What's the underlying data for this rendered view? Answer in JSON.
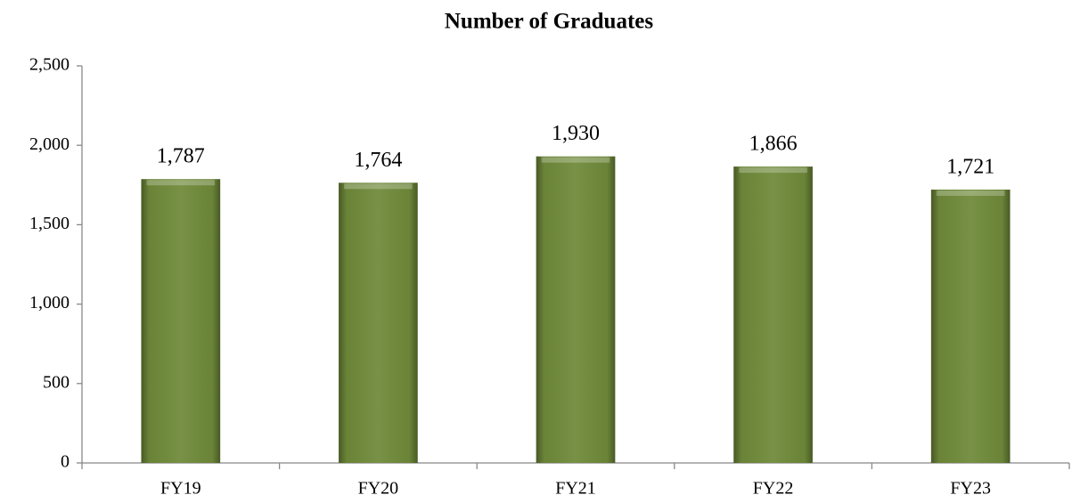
{
  "chart_data": {
    "type": "bar",
    "title": "Number of Graduates",
    "categories": [
      "FY19",
      "FY20",
      "FY21",
      "FY22",
      "FY23"
    ],
    "values": [
      1787,
      1764,
      1930,
      1866,
      1721
    ],
    "value_labels": [
      "1,787",
      "1,764",
      "1,930",
      "1,866",
      "1,721"
    ],
    "color": "#6f8a3a",
    "ylim": [
      0,
      2500
    ],
    "yticks": [
      0,
      500,
      {
        "value": 1000,
        "label": "1,000"
      },
      {
        "value": 1500,
        "label": "1,500"
      },
      {
        "value": 2000,
        "label": "2,000"
      },
      {
        "value": 2500,
        "label": "2,500"
      }
    ],
    "grid": false
  }
}
